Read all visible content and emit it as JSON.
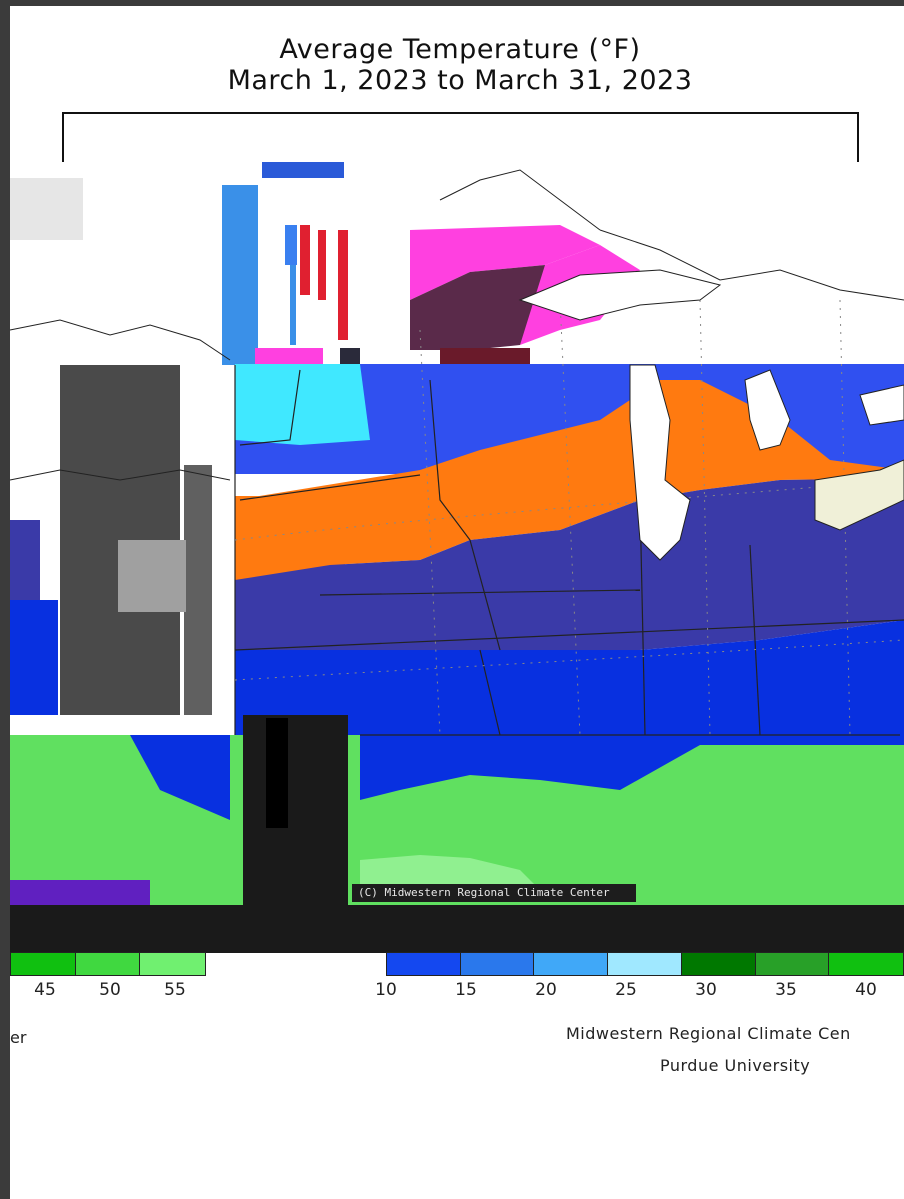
{
  "title": {
    "line1": "Average Temperature (°F)",
    "line2": "March 1, 2023 to March 31, 2023"
  },
  "credit": "(C) Midwestern Regional Climate Center",
  "colors": {
    "magenta": "#ff40e0",
    "maroon": "#5a2a4a",
    "cyan": "#40e8ff",
    "royal_blue": "#3050f0",
    "orange": "#ff7a10",
    "slate_blue": "#3a3aa8",
    "deep_blue": "#0830e0",
    "light_green": "#60e060",
    "violet": "#6020c0"
  },
  "legend_left": {
    "colors": [
      "#10c010",
      "#40d840",
      "#70f070"
    ],
    "ticks": [
      "45",
      "50",
      "55"
    ]
  },
  "legend_right": {
    "colors": [
      "#1448f0",
      "#2a78ec",
      "#40a8f8",
      "#a0e8ff",
      "#007800",
      "#28a028",
      "#10c010"
    ],
    "ticks": [
      "10",
      "15",
      "20",
      "25",
      "30",
      "35",
      "40"
    ]
  },
  "footer": {
    "left_fragment": "er",
    "org": "Midwestern Regional Climate Cen",
    "university": "Purdue University"
  }
}
